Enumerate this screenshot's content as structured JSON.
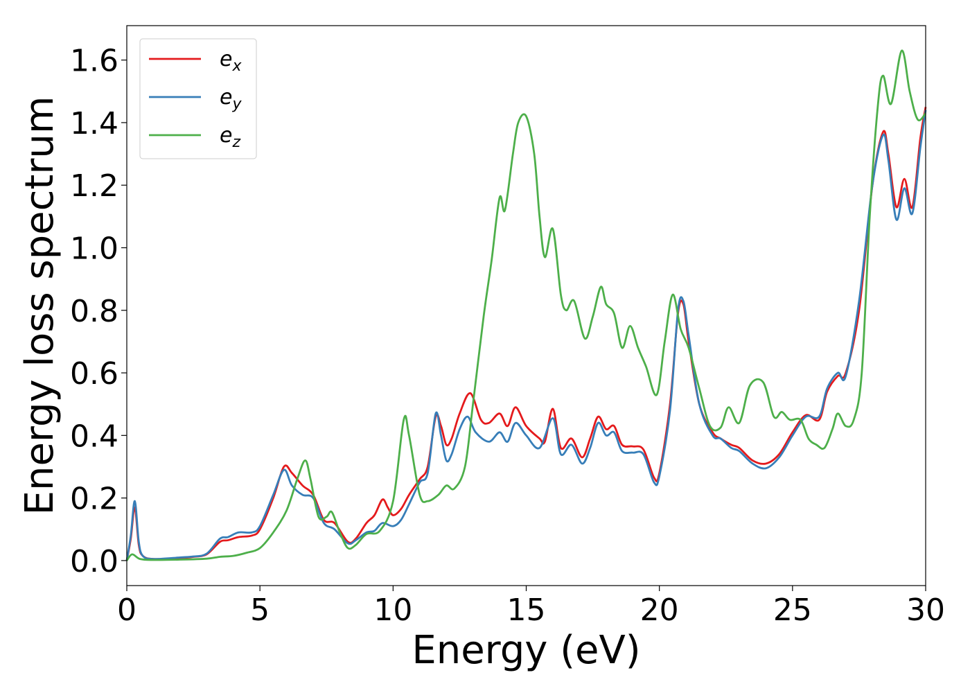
{
  "chart_data": {
    "type": "line",
    "xlabel": "Energy (eV)",
    "ylabel": "Energy loss spectrum",
    "xlim": [
      0,
      30
    ],
    "ylim": [
      -0.08,
      1.71
    ],
    "xticks": [
      0,
      5,
      10,
      15,
      20,
      25,
      30
    ],
    "xtick_labels": [
      "0",
      "5",
      "10",
      "15",
      "20",
      "25",
      "30"
    ],
    "yticks": [
      0.0,
      0.2,
      0.4,
      0.6,
      0.8,
      1.0,
      1.2,
      1.4,
      1.6
    ],
    "ytick_labels": [
      "0.0",
      "0.2",
      "0.4",
      "0.6",
      "0.8",
      "1.0",
      "1.2",
      "1.4",
      "1.6"
    ],
    "grid": false,
    "legend_position": "top-left",
    "series": [
      {
        "name_base": "e",
        "name_sub": "x",
        "color": "#e41a1c",
        "points": [
          [
            0,
            0.0
          ],
          [
            0.15,
            0.07
          ],
          [
            0.3,
            0.17
          ],
          [
            0.45,
            0.05
          ],
          [
            0.6,
            0.015
          ],
          [
            1,
            0.005
          ],
          [
            2,
            0.008
          ],
          [
            2.5,
            0.012
          ],
          [
            3,
            0.02
          ],
          [
            3.5,
            0.06
          ],
          [
            3.8,
            0.065
          ],
          [
            4.2,
            0.075
          ],
          [
            4.7,
            0.08
          ],
          [
            5.0,
            0.1
          ],
          [
            5.5,
            0.2
          ],
          [
            5.9,
            0.3
          ],
          [
            6.2,
            0.28
          ],
          [
            6.6,
            0.24
          ],
          [
            7.0,
            0.21
          ],
          [
            7.4,
            0.13
          ],
          [
            7.8,
            0.12
          ],
          [
            8.3,
            0.06
          ],
          [
            8.6,
            0.07
          ],
          [
            9.0,
            0.12
          ],
          [
            9.3,
            0.145
          ],
          [
            9.6,
            0.195
          ],
          [
            9.8,
            0.17
          ],
          [
            10.0,
            0.145
          ],
          [
            10.3,
            0.165
          ],
          [
            10.6,
            0.21
          ],
          [
            11.0,
            0.26
          ],
          [
            11.3,
            0.3
          ],
          [
            11.6,
            0.46
          ],
          [
            11.8,
            0.43
          ],
          [
            12.0,
            0.37
          ],
          [
            12.2,
            0.39
          ],
          [
            12.5,
            0.47
          ],
          [
            12.9,
            0.535
          ],
          [
            13.3,
            0.45
          ],
          [
            13.6,
            0.44
          ],
          [
            14.0,
            0.47
          ],
          [
            14.3,
            0.43
          ],
          [
            14.6,
            0.49
          ],
          [
            15.0,
            0.43
          ],
          [
            15.5,
            0.39
          ],
          [
            15.7,
            0.38
          ],
          [
            16.0,
            0.485
          ],
          [
            16.3,
            0.36
          ],
          [
            16.7,
            0.39
          ],
          [
            17.1,
            0.33
          ],
          [
            17.4,
            0.39
          ],
          [
            17.7,
            0.46
          ],
          [
            18.0,
            0.42
          ],
          [
            18.3,
            0.43
          ],
          [
            18.6,
            0.37
          ],
          [
            19.0,
            0.365
          ],
          [
            19.4,
            0.355
          ],
          [
            19.8,
            0.265
          ],
          [
            20.0,
            0.28
          ],
          [
            20.4,
            0.5
          ],
          [
            20.7,
            0.79
          ],
          [
            20.9,
            0.82
          ],
          [
            21.1,
            0.7
          ],
          [
            21.5,
            0.5
          ],
          [
            22.0,
            0.41
          ],
          [
            22.3,
            0.39
          ],
          [
            22.7,
            0.37
          ],
          [
            23.0,
            0.36
          ],
          [
            23.5,
            0.32
          ],
          [
            24.0,
            0.31
          ],
          [
            24.5,
            0.34
          ],
          [
            25.0,
            0.41
          ],
          [
            25.5,
            0.465
          ],
          [
            26.0,
            0.45
          ],
          [
            26.3,
            0.54
          ],
          [
            26.7,
            0.59
          ],
          [
            27.0,
            0.6
          ],
          [
            27.5,
            0.8
          ],
          [
            28.0,
            1.2
          ],
          [
            28.4,
            1.37
          ],
          [
            28.6,
            1.3
          ],
          [
            28.9,
            1.13
          ],
          [
            29.2,
            1.22
          ],
          [
            29.5,
            1.13
          ],
          [
            29.8,
            1.35
          ],
          [
            30.0,
            1.45
          ]
        ]
      },
      {
        "name_base": "e",
        "name_sub": "y",
        "color": "#377eb8",
        "points": [
          [
            0,
            0.0
          ],
          [
            0.15,
            0.08
          ],
          [
            0.3,
            0.19
          ],
          [
            0.45,
            0.06
          ],
          [
            0.6,
            0.015
          ],
          [
            1,
            0.005
          ],
          [
            2,
            0.01
          ],
          [
            2.5,
            0.013
          ],
          [
            3,
            0.022
          ],
          [
            3.5,
            0.07
          ],
          [
            3.8,
            0.075
          ],
          [
            4.2,
            0.09
          ],
          [
            4.7,
            0.09
          ],
          [
            5.0,
            0.11
          ],
          [
            5.5,
            0.21
          ],
          [
            5.9,
            0.29
          ],
          [
            6.2,
            0.24
          ],
          [
            6.6,
            0.21
          ],
          [
            7.0,
            0.2
          ],
          [
            7.4,
            0.12
          ],
          [
            7.8,
            0.1
          ],
          [
            8.3,
            0.055
          ],
          [
            8.6,
            0.065
          ],
          [
            9.0,
            0.09
          ],
          [
            9.3,
            0.095
          ],
          [
            9.6,
            0.12
          ],
          [
            10.0,
            0.11
          ],
          [
            10.3,
            0.13
          ],
          [
            10.6,
            0.18
          ],
          [
            11.0,
            0.25
          ],
          [
            11.3,
            0.28
          ],
          [
            11.6,
            0.47
          ],
          [
            11.8,
            0.4
          ],
          [
            12.0,
            0.32
          ],
          [
            12.2,
            0.34
          ],
          [
            12.5,
            0.42
          ],
          [
            12.8,
            0.46
          ],
          [
            13.1,
            0.41
          ],
          [
            13.6,
            0.38
          ],
          [
            14.0,
            0.41
          ],
          [
            14.3,
            0.38
          ],
          [
            14.6,
            0.44
          ],
          [
            15.0,
            0.4
          ],
          [
            15.5,
            0.36
          ],
          [
            16.0,
            0.455
          ],
          [
            16.3,
            0.34
          ],
          [
            16.7,
            0.37
          ],
          [
            17.1,
            0.31
          ],
          [
            17.4,
            0.36
          ],
          [
            17.7,
            0.44
          ],
          [
            18.0,
            0.4
          ],
          [
            18.3,
            0.41
          ],
          [
            18.6,
            0.35
          ],
          [
            19.0,
            0.345
          ],
          [
            19.4,
            0.34
          ],
          [
            19.8,
            0.25
          ],
          [
            20.0,
            0.27
          ],
          [
            20.4,
            0.48
          ],
          [
            20.7,
            0.8
          ],
          [
            20.9,
            0.83
          ],
          [
            21.1,
            0.72
          ],
          [
            21.5,
            0.5
          ],
          [
            22.0,
            0.4
          ],
          [
            22.3,
            0.39
          ],
          [
            22.7,
            0.36
          ],
          [
            23.0,
            0.35
          ],
          [
            23.5,
            0.31
          ],
          [
            24.0,
            0.295
          ],
          [
            24.5,
            0.33
          ],
          [
            25.0,
            0.4
          ],
          [
            25.5,
            0.46
          ],
          [
            26.0,
            0.46
          ],
          [
            26.3,
            0.55
          ],
          [
            26.7,
            0.6
          ],
          [
            27.0,
            0.59
          ],
          [
            27.5,
            0.83
          ],
          [
            28.0,
            1.2
          ],
          [
            28.4,
            1.36
          ],
          [
            28.6,
            1.28
          ],
          [
            28.9,
            1.09
          ],
          [
            29.2,
            1.19
          ],
          [
            29.5,
            1.11
          ],
          [
            29.8,
            1.32
          ],
          [
            30.0,
            1.44
          ]
        ]
      },
      {
        "name_base": "e",
        "name_sub": "z",
        "color": "#4daf4a",
        "points": [
          [
            0,
            0.0
          ],
          [
            0.2,
            0.02
          ],
          [
            0.5,
            0.005
          ],
          [
            1,
            0.002
          ],
          [
            2,
            0.003
          ],
          [
            3,
            0.006
          ],
          [
            3.5,
            0.012
          ],
          [
            4.0,
            0.015
          ],
          [
            4.5,
            0.025
          ],
          [
            5.0,
            0.04
          ],
          [
            5.5,
            0.09
          ],
          [
            6.0,
            0.16
          ],
          [
            6.4,
            0.26
          ],
          [
            6.7,
            0.32
          ],
          [
            6.9,
            0.26
          ],
          [
            7.2,
            0.14
          ],
          [
            7.5,
            0.14
          ],
          [
            7.7,
            0.155
          ],
          [
            8.0,
            0.09
          ],
          [
            8.3,
            0.04
          ],
          [
            8.6,
            0.05
          ],
          [
            9.0,
            0.085
          ],
          [
            9.5,
            0.095
          ],
          [
            10.0,
            0.19
          ],
          [
            10.4,
            0.45
          ],
          [
            10.6,
            0.4
          ],
          [
            11.0,
            0.21
          ],
          [
            11.3,
            0.19
          ],
          [
            11.7,
            0.21
          ],
          [
            12.0,
            0.24
          ],
          [
            12.3,
            0.23
          ],
          [
            12.7,
            0.3
          ],
          [
            13.0,
            0.5
          ],
          [
            13.4,
            0.78
          ],
          [
            13.7,
            0.96
          ],
          [
            14.0,
            1.16
          ],
          [
            14.2,
            1.12
          ],
          [
            14.5,
            1.3
          ],
          [
            14.7,
            1.4
          ],
          [
            15.0,
            1.42
          ],
          [
            15.3,
            1.3
          ],
          [
            15.5,
            1.1
          ],
          [
            15.7,
            0.97
          ],
          [
            16.0,
            1.06
          ],
          [
            16.3,
            0.85
          ],
          [
            16.5,
            0.8
          ],
          [
            16.8,
            0.83
          ],
          [
            17.2,
            0.71
          ],
          [
            17.5,
            0.78
          ],
          [
            17.8,
            0.875
          ],
          [
            18.0,
            0.82
          ],
          [
            18.3,
            0.79
          ],
          [
            18.6,
            0.68
          ],
          [
            18.9,
            0.75
          ],
          [
            19.2,
            0.68
          ],
          [
            19.5,
            0.62
          ],
          [
            19.9,
            0.53
          ],
          [
            20.2,
            0.7
          ],
          [
            20.5,
            0.85
          ],
          [
            20.8,
            0.74
          ],
          [
            21.1,
            0.68
          ],
          [
            21.5,
            0.55
          ],
          [
            21.9,
            0.43
          ],
          [
            22.3,
            0.425
          ],
          [
            22.6,
            0.49
          ],
          [
            23.0,
            0.44
          ],
          [
            23.4,
            0.56
          ],
          [
            23.9,
            0.57
          ],
          [
            24.3,
            0.46
          ],
          [
            24.6,
            0.475
          ],
          [
            24.9,
            0.45
          ],
          [
            25.3,
            0.45
          ],
          [
            25.6,
            0.39
          ],
          [
            25.9,
            0.37
          ],
          [
            26.2,
            0.36
          ],
          [
            26.5,
            0.42
          ],
          [
            26.7,
            0.47
          ],
          [
            27.0,
            0.43
          ],
          [
            27.3,
            0.45
          ],
          [
            27.6,
            0.6
          ],
          [
            27.9,
            1.1
          ],
          [
            28.2,
            1.45
          ],
          [
            28.4,
            1.55
          ],
          [
            28.7,
            1.46
          ],
          [
            29.1,
            1.63
          ],
          [
            29.4,
            1.5
          ],
          [
            29.7,
            1.41
          ],
          [
            30.0,
            1.43
          ]
        ]
      }
    ]
  }
}
